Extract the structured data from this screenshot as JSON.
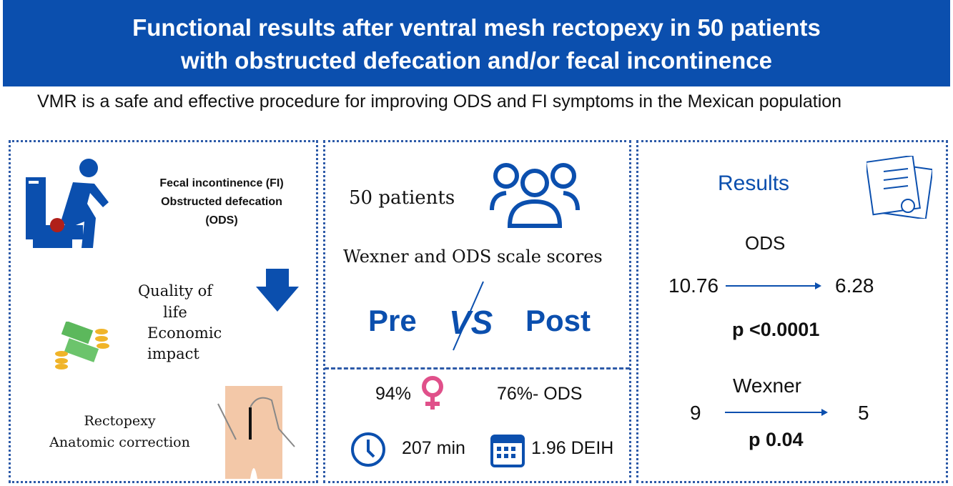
{
  "title": {
    "line1": "Functional results after ventral mesh rectopexy in 50 patients",
    "line2": "with obstructed defecation and/or fecal incontinence"
  },
  "subtitle": "VMR  is a safe and effective procedure for improving ODS and FI symptoms in the Mexican population",
  "left": {
    "condition1": "Fecal incontinence (FI)",
    "condition2": "Obstructed defecation",
    "condition3": "(ODS)",
    "qol1": "Quality of",
    "qol2": "life",
    "econ1": "Economic",
    "econ2": "impact",
    "rect1": "Rectopexy",
    "rect2": "Anatomic correction"
  },
  "middle": {
    "patients": "50 patients",
    "scales": "Wexner and ODS scale scores",
    "pre": "Pre",
    "vs": "VS",
    "post": "Post",
    "female": "94%",
    "ods_pct": "76%- ODS",
    "time": "207 min",
    "stay": "1.96 DEIH"
  },
  "right": {
    "heading": "Results",
    "ods_label": "ODS",
    "ods_pre": "10.76",
    "ods_post": "6.28",
    "ods_p": "p <0.0001",
    "wexner_label": "Wexner",
    "wexner_pre": "9",
    "wexner_post": "5",
    "wexner_p": "p 0.04"
  },
  "colors": {
    "blue": "#0b4fae",
    "pink": "#e0508a"
  }
}
